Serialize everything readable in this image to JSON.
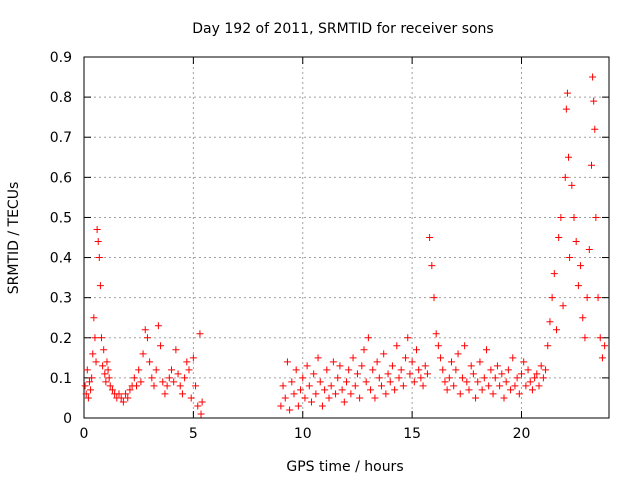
{
  "chart_data": {
    "type": "scatter",
    "title": "Day 192 of 2011, SRMTID for receiver sons",
    "xlabel": "GPS time / hours",
    "ylabel": "SRMTID / TECUs",
    "xlim": [
      0,
      24
    ],
    "ylim": [
      0,
      0.9
    ],
    "xticks": [
      0,
      5,
      10,
      15,
      20
    ],
    "yticks": [
      0,
      0.1,
      0.2,
      0.3,
      0.4,
      0.5,
      0.6,
      0.7,
      0.8,
      0.9
    ],
    "grid": true,
    "marker": "+",
    "color": "#ff0000",
    "series": [
      {
        "name": "SRMTID",
        "points": [
          [
            0.05,
            0.08
          ],
          [
            0.1,
            0.06
          ],
          [
            0.15,
            0.12
          ],
          [
            0.2,
            0.05
          ],
          [
            0.25,
            0.09
          ],
          [
            0.3,
            0.07
          ],
          [
            0.35,
            0.1
          ],
          [
            0.4,
            0.16
          ],
          [
            0.45,
            0.25
          ],
          [
            0.5,
            0.2
          ],
          [
            0.55,
            0.14
          ],
          [
            0.6,
            0.47
          ],
          [
            0.65,
            0.44
          ],
          [
            0.7,
            0.4
          ],
          [
            0.75,
            0.33
          ],
          [
            0.8,
            0.2
          ],
          [
            0.85,
            0.13
          ],
          [
            0.9,
            0.17
          ],
          [
            0.95,
            0.11
          ],
          [
            1.0,
            0.09
          ],
          [
            1.05,
            0.14
          ],
          [
            1.1,
            0.12
          ],
          [
            1.15,
            0.1
          ],
          [
            1.2,
            0.08
          ],
          [
            1.3,
            0.07
          ],
          [
            1.4,
            0.06
          ],
          [
            1.5,
            0.05
          ],
          [
            1.6,
            0.06
          ],
          [
            1.7,
            0.05
          ],
          [
            1.8,
            0.04
          ],
          [
            1.9,
            0.06
          ],
          [
            2.0,
            0.05
          ],
          [
            2.1,
            0.07
          ],
          [
            2.2,
            0.08
          ],
          [
            2.3,
            0.1
          ],
          [
            2.4,
            0.08
          ],
          [
            2.5,
            0.12
          ],
          [
            2.6,
            0.09
          ],
          [
            2.7,
            0.16
          ],
          [
            2.8,
            0.22
          ],
          [
            2.9,
            0.2
          ],
          [
            3.0,
            0.14
          ],
          [
            3.1,
            0.1
          ],
          [
            3.2,
            0.08
          ],
          [
            3.3,
            0.12
          ],
          [
            3.4,
            0.23
          ],
          [
            3.5,
            0.18
          ],
          [
            3.6,
            0.09
          ],
          [
            3.7,
            0.06
          ],
          [
            3.8,
            0.08
          ],
          [
            3.9,
            0.1
          ],
          [
            4.0,
            0.12
          ],
          [
            4.1,
            0.09
          ],
          [
            4.2,
            0.17
          ],
          [
            4.3,
            0.11
          ],
          [
            4.4,
            0.08
          ],
          [
            4.5,
            0.06
          ],
          [
            4.6,
            0.1
          ],
          [
            4.7,
            0.14
          ],
          [
            4.8,
            0.12
          ],
          [
            4.9,
            0.05
          ],
          [
            5.0,
            0.15
          ],
          [
            5.1,
            0.08
          ],
          [
            5.2,
            0.03
          ],
          [
            5.3,
            0.21
          ],
          [
            5.35,
            0.01
          ],
          [
            5.4,
            0.04
          ],
          [
            9.0,
            0.03
          ],
          [
            9.1,
            0.08
          ],
          [
            9.2,
            0.05
          ],
          [
            9.3,
            0.14
          ],
          [
            9.4,
            0.02
          ],
          [
            9.5,
            0.09
          ],
          [
            9.6,
            0.06
          ],
          [
            9.7,
            0.12
          ],
          [
            9.8,
            0.03
          ],
          [
            9.9,
            0.07
          ],
          [
            10.0,
            0.1
          ],
          [
            10.1,
            0.05
          ],
          [
            10.2,
            0.13
          ],
          [
            10.3,
            0.08
          ],
          [
            10.4,
            0.04
          ],
          [
            10.5,
            0.11
          ],
          [
            10.6,
            0.06
          ],
          [
            10.7,
            0.15
          ],
          [
            10.8,
            0.09
          ],
          [
            10.9,
            0.03
          ],
          [
            11.0,
            0.07
          ],
          [
            11.1,
            0.12
          ],
          [
            11.2,
            0.05
          ],
          [
            11.3,
            0.08
          ],
          [
            11.4,
            0.14
          ],
          [
            11.5,
            0.06
          ],
          [
            11.6,
            0.1
          ],
          [
            11.7,
            0.13
          ],
          [
            11.8,
            0.07
          ],
          [
            11.9,
            0.04
          ],
          [
            12.0,
            0.09
          ],
          [
            12.1,
            0.12
          ],
          [
            12.2,
            0.06
          ],
          [
            12.3,
            0.15
          ],
          [
            12.4,
            0.08
          ],
          [
            12.5,
            0.11
          ],
          [
            12.6,
            0.05
          ],
          [
            12.7,
            0.13
          ],
          [
            12.8,
            0.17
          ],
          [
            12.9,
            0.09
          ],
          [
            13.0,
            0.2
          ],
          [
            13.1,
            0.07
          ],
          [
            13.2,
            0.12
          ],
          [
            13.3,
            0.05
          ],
          [
            13.4,
            0.14
          ],
          [
            13.5,
            0.1
          ],
          [
            13.6,
            0.08
          ],
          [
            13.7,
            0.16
          ],
          [
            13.8,
            0.06
          ],
          [
            13.9,
            0.11
          ],
          [
            14.0,
            0.09
          ],
          [
            14.1,
            0.13
          ],
          [
            14.2,
            0.07
          ],
          [
            14.3,
            0.18
          ],
          [
            14.4,
            0.1
          ],
          [
            14.5,
            0.12
          ],
          [
            14.6,
            0.08
          ],
          [
            14.7,
            0.15
          ],
          [
            14.8,
            0.2
          ],
          [
            14.9,
            0.11
          ],
          [
            15.0,
            0.14
          ],
          [
            15.1,
            0.09
          ],
          [
            15.2,
            0.17
          ],
          [
            15.3,
            0.12
          ],
          [
            15.4,
            0.1
          ],
          [
            15.5,
            0.08
          ],
          [
            15.6,
            0.13
          ],
          [
            15.7,
            0.11
          ],
          [
            15.8,
            0.45
          ],
          [
            15.9,
            0.38
          ],
          [
            16.0,
            0.3
          ],
          [
            16.1,
            0.21
          ],
          [
            16.2,
            0.18
          ],
          [
            16.3,
            0.15
          ],
          [
            16.4,
            0.12
          ],
          [
            16.5,
            0.09
          ],
          [
            16.6,
            0.07
          ],
          [
            16.7,
            0.1
          ],
          [
            16.8,
            0.14
          ],
          [
            16.9,
            0.08
          ],
          [
            17.0,
            0.12
          ],
          [
            17.1,
            0.16
          ],
          [
            17.2,
            0.06
          ],
          [
            17.3,
            0.1
          ],
          [
            17.4,
            0.18
          ],
          [
            17.5,
            0.09
          ],
          [
            17.6,
            0.07
          ],
          [
            17.7,
            0.13
          ],
          [
            17.8,
            0.11
          ],
          [
            17.9,
            0.05
          ],
          [
            18.0,
            0.09
          ],
          [
            18.1,
            0.14
          ],
          [
            18.2,
            0.07
          ],
          [
            18.3,
            0.1
          ],
          [
            18.4,
            0.17
          ],
          [
            18.5,
            0.08
          ],
          [
            18.6,
            0.12
          ],
          [
            18.7,
            0.06
          ],
          [
            18.8,
            0.1
          ],
          [
            18.9,
            0.13
          ],
          [
            19.0,
            0.08
          ],
          [
            19.1,
            0.11
          ],
          [
            19.2,
            0.05
          ],
          [
            19.3,
            0.09
          ],
          [
            19.4,
            0.12
          ],
          [
            19.5,
            0.07
          ],
          [
            19.6,
            0.15
          ],
          [
            19.7,
            0.08
          ],
          [
            19.8,
            0.1
          ],
          [
            19.9,
            0.06
          ],
          [
            20.0,
            0.11
          ],
          [
            20.1,
            0.14
          ],
          [
            20.2,
            0.08
          ],
          [
            20.3,
            0.12
          ],
          [
            20.4,
            0.09
          ],
          [
            20.5,
            0.07
          ],
          [
            20.6,
            0.1
          ],
          [
            20.7,
            0.11
          ],
          [
            20.8,
            0.08
          ],
          [
            20.9,
            0.13
          ],
          [
            21.0,
            0.1
          ],
          [
            21.1,
            0.12
          ],
          [
            21.2,
            0.18
          ],
          [
            21.3,
            0.24
          ],
          [
            21.4,
            0.3
          ],
          [
            21.5,
            0.36
          ],
          [
            21.6,
            0.22
          ],
          [
            21.7,
            0.45
          ],
          [
            21.8,
            0.5
          ],
          [
            21.9,
            0.28
          ],
          [
            22.0,
            0.6
          ],
          [
            22.05,
            0.77
          ],
          [
            22.1,
            0.81
          ],
          [
            22.15,
            0.65
          ],
          [
            22.2,
            0.4
          ],
          [
            22.3,
            0.58
          ],
          [
            22.4,
            0.5
          ],
          [
            22.5,
            0.44
          ],
          [
            22.6,
            0.33
          ],
          [
            22.7,
            0.38
          ],
          [
            22.8,
            0.25
          ],
          [
            22.9,
            0.2
          ],
          [
            23.0,
            0.3
          ],
          [
            23.1,
            0.42
          ],
          [
            23.2,
            0.63
          ],
          [
            23.25,
            0.85
          ],
          [
            23.3,
            0.79
          ],
          [
            23.35,
            0.72
          ],
          [
            23.4,
            0.5
          ],
          [
            23.5,
            0.3
          ],
          [
            23.6,
            0.2
          ],
          [
            23.7,
            0.15
          ],
          [
            23.8,
            0.18
          ]
        ]
      }
    ]
  }
}
